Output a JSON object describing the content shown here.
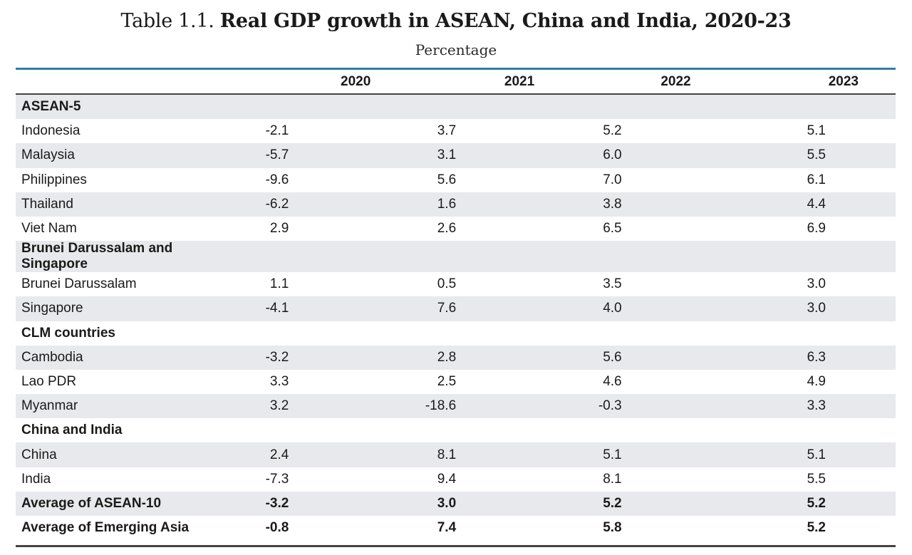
{
  "title_prefix": "Table 1.1.",
  "title_main": "Real GDP growth in ASEAN, China and India, 2020-23",
  "subtitle": "Percentage",
  "chart_data": {
    "type": "table",
    "title": "Table 1.1. Real GDP growth in ASEAN, China and India, 2020-23",
    "unit": "Percentage",
    "columns": [
      "2020",
      "2021",
      "2022",
      "2023"
    ],
    "rows": [
      {
        "label": "ASEAN-5",
        "kind": "section",
        "values": [
          "",
          "",
          "",
          ""
        ]
      },
      {
        "label": "Indonesia",
        "kind": "data",
        "values": [
          "-2.1",
          "3.7",
          "5.2",
          "5.1"
        ]
      },
      {
        "label": "Malaysia",
        "kind": "data",
        "values": [
          "-5.7",
          "3.1",
          "6.0",
          "5.5"
        ]
      },
      {
        "label": "Philippines",
        "kind": "data",
        "values": [
          "-9.6",
          "5.6",
          "7.0",
          "6.1"
        ]
      },
      {
        "label": "Thailand",
        "kind": "data",
        "values": [
          "-6.2",
          "1.6",
          "3.8",
          "4.4"
        ]
      },
      {
        "label": "Viet Nam",
        "kind": "data",
        "values": [
          "2.9",
          "2.6",
          "6.5",
          "6.9"
        ]
      },
      {
        "label": "Brunei Darussalam and Singapore",
        "kind": "section",
        "values": [
          "",
          "",
          "",
          ""
        ]
      },
      {
        "label": "Brunei Darussalam",
        "kind": "data",
        "values": [
          "1.1",
          "0.5",
          "3.5",
          "3.0"
        ]
      },
      {
        "label": "Singapore",
        "kind": "data",
        "values": [
          "-4.1",
          "7.6",
          "4.0",
          "3.0"
        ]
      },
      {
        "label": "CLM countries",
        "kind": "section",
        "values": [
          "",
          "",
          "",
          ""
        ]
      },
      {
        "label": "Cambodia",
        "kind": "data",
        "values": [
          "-3.2",
          "2.8",
          "5.6",
          "6.3"
        ]
      },
      {
        "label": "Lao PDR",
        "kind": "data",
        "values": [
          "3.3",
          "2.5",
          "4.6",
          "4.9"
        ]
      },
      {
        "label": "Myanmar",
        "kind": "data",
        "values": [
          "3.2",
          "-18.6",
          "-0.3",
          "3.3"
        ]
      },
      {
        "label": "China and India",
        "kind": "section",
        "values": [
          "",
          "",
          "",
          ""
        ]
      },
      {
        "label": "China",
        "kind": "data",
        "values": [
          "2.4",
          "8.1",
          "5.1",
          "5.1"
        ]
      },
      {
        "label": "India",
        "kind": "data",
        "values": [
          "-7.3",
          "9.4",
          "8.1",
          "5.5"
        ]
      },
      {
        "label": "Average of ASEAN-10",
        "kind": "avg",
        "values": [
          "-3.2",
          "3.0",
          "5.2",
          "5.2"
        ]
      },
      {
        "label": "Average of Emerging Asia",
        "kind": "avg",
        "values": [
          "-0.8",
          "7.4",
          "5.8",
          "5.2"
        ]
      }
    ]
  },
  "colors": {
    "accent_line": "#2f7fa8",
    "row_shade": "#e8e9ec"
  }
}
